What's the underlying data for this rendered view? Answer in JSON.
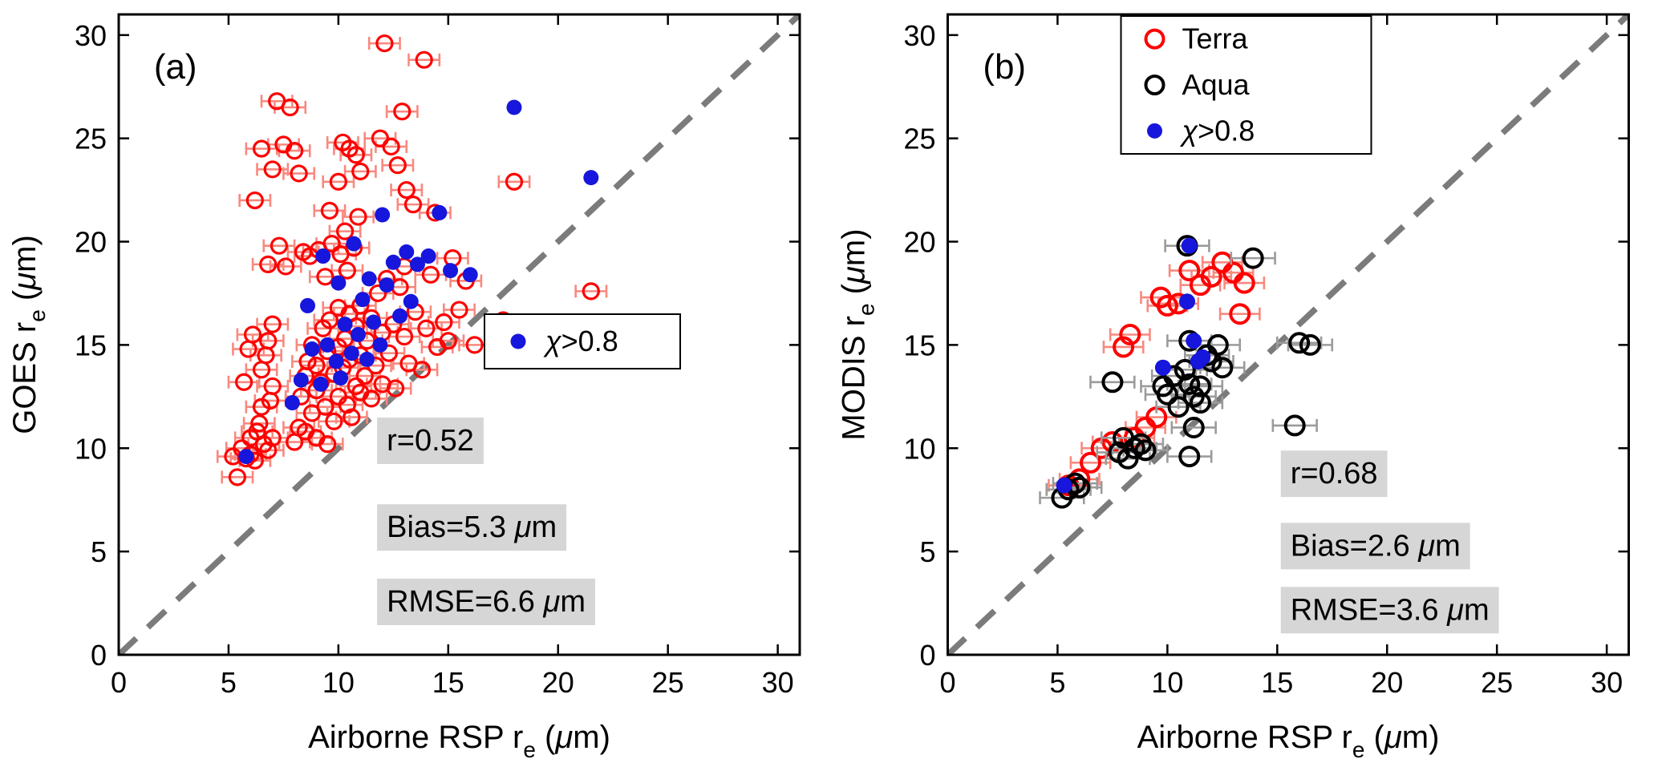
{
  "figure_title": "",
  "colors": {
    "red": "#ff0000",
    "red_err": "#f8897f",
    "blue": "#1616dc",
    "black": "#000000",
    "gray_err": "#9b9b9b",
    "identity_line": "#7b7b7b",
    "stats_bg": "#d6d6d6",
    "legend_bg": "#ffffff",
    "axis": "#000000"
  },
  "chart_data": [
    {
      "type": "scatter",
      "panel_label": "(a)",
      "xlabel": {
        "pre": "Airborne RSP r",
        "sub": "e",
        "post": " (μm)"
      },
      "ylabel": {
        "pre": "GOES r",
        "sub": "e",
        "post": " (μm)"
      },
      "xlim": [
        0,
        31
      ],
      "ylim": [
        0,
        31
      ],
      "xticks": [
        0,
        5,
        10,
        15,
        20,
        25,
        30
      ],
      "yticks": [
        0,
        5,
        10,
        15,
        20,
        25,
        30
      ],
      "identity_line": true,
      "stats": [
        "r=0.52",
        "Bias=5.3 μm",
        "RMSE=6.6 μm"
      ],
      "legend": [
        {
          "marker": "filled",
          "color": "blue",
          "label": "χ>0.8"
        }
      ],
      "series": [
        {
          "name": "goes-retrievals",
          "marker": "open",
          "color": "red",
          "err_color": "red_err",
          "xerr": 0.7,
          "points": [
            [
              5.2,
              9.6
            ],
            [
              5.4,
              8.6
            ],
            [
              5.6,
              10.0
            ],
            [
              5.7,
              13.2
            ],
            [
              5.8,
              9.5
            ],
            [
              5.9,
              14.8
            ],
            [
              6.0,
              9.7
            ],
            [
              6.0,
              10.5
            ],
            [
              6.1,
              15.5
            ],
            [
              6.2,
              9.4
            ],
            [
              6.2,
              22.0
            ],
            [
              6.3,
              10.8
            ],
            [
              6.4,
              11.2
            ],
            [
              6.5,
              12.0
            ],
            [
              6.5,
              13.8
            ],
            [
              6.5,
              24.5
            ],
            [
              6.6,
              10.2
            ],
            [
              6.7,
              14.5
            ],
            [
              6.8,
              9.9
            ],
            [
              6.8,
              15.2
            ],
            [
              6.8,
              18.9
            ],
            [
              6.9,
              12.3
            ],
            [
              7.0,
              10.5
            ],
            [
              7.0,
              13.0
            ],
            [
              7.0,
              16.0
            ],
            [
              7.0,
              23.5
            ],
            [
              7.2,
              26.8
            ],
            [
              7.3,
              19.8
            ],
            [
              7.5,
              24.7
            ],
            [
              7.6,
              18.8
            ],
            [
              7.8,
              26.5
            ],
            [
              8.0,
              10.3
            ],
            [
              8.0,
              24.4
            ],
            [
              8.2,
              11.0
            ],
            [
              8.2,
              23.3
            ],
            [
              8.3,
              12.5
            ],
            [
              8.4,
              19.5
            ],
            [
              8.5,
              10.8
            ],
            [
              8.5,
              13.5
            ],
            [
              8.6,
              14.2
            ],
            [
              8.7,
              19.3
            ],
            [
              8.8,
              11.7
            ],
            [
              8.8,
              15.0
            ],
            [
              9.0,
              10.5
            ],
            [
              9.0,
              12.8
            ],
            [
              9.0,
              14.0
            ],
            [
              9.1,
              19.6
            ],
            [
              9.2,
              13.2
            ],
            [
              9.3,
              15.8
            ],
            [
              9.4,
              12.0
            ],
            [
              9.4,
              18.3
            ],
            [
              9.5,
              10.2
            ],
            [
              9.5,
              14.7
            ],
            [
              9.6,
              16.2
            ],
            [
              9.6,
              21.5
            ],
            [
              9.7,
              19.9
            ],
            [
              9.8,
              11.3
            ],
            [
              9.8,
              13.6
            ],
            [
              10.0,
              12.5
            ],
            [
              10.0,
              14.9
            ],
            [
              10.0,
              16.8
            ],
            [
              10.0,
              22.9
            ],
            [
              10.1,
              19.4
            ],
            [
              10.2,
              13.9
            ],
            [
              10.2,
              24.8
            ],
            [
              10.3,
              15.3
            ],
            [
              10.3,
              20.5
            ],
            [
              10.4,
              12.1
            ],
            [
              10.4,
              18.6
            ],
            [
              10.5,
              14.3
            ],
            [
              10.5,
              16.5
            ],
            [
              10.5,
              24.5
            ],
            [
              10.6,
              11.5
            ],
            [
              10.7,
              19.7
            ],
            [
              10.8,
              13.0
            ],
            [
              10.8,
              15.9
            ],
            [
              10.8,
              24.2
            ],
            [
              10.9,
              21.2
            ],
            [
              11.0,
              12.7
            ],
            [
              11.0,
              14.5
            ],
            [
              11.0,
              16.9
            ],
            [
              11.0,
              23.4
            ],
            [
              11.2,
              13.5
            ],
            [
              11.3,
              15.2
            ],
            [
              11.5,
              12.4
            ],
            [
              11.5,
              16.3
            ],
            [
              11.7,
              14.0
            ],
            [
              11.8,
              17.5
            ],
            [
              11.9,
              25.0
            ],
            [
              12.0,
              13.1
            ],
            [
              12.0,
              15.6
            ],
            [
              12.1,
              29.6
            ],
            [
              12.2,
              18.2
            ],
            [
              12.3,
              14.6
            ],
            [
              12.4,
              24.6
            ],
            [
              12.5,
              16.0
            ],
            [
              12.6,
              12.9
            ],
            [
              12.7,
              23.7
            ],
            [
              12.8,
              17.8
            ],
            [
              12.9,
              26.3
            ],
            [
              13.0,
              15.4
            ],
            [
              13.0,
              18.8
            ],
            [
              13.1,
              22.5
            ],
            [
              13.2,
              14.1
            ],
            [
              13.4,
              21.8
            ],
            [
              13.5,
              16.6
            ],
            [
              13.8,
              13.8
            ],
            [
              13.9,
              28.8
            ],
            [
              14.0,
              15.8
            ],
            [
              14.2,
              18.4
            ],
            [
              14.4,
              21.4
            ],
            [
              14.5,
              14.9
            ],
            [
              14.8,
              16.1
            ],
            [
              15.0,
              15.2
            ],
            [
              15.2,
              19.2
            ],
            [
              15.5,
              16.7
            ],
            [
              15.8,
              18.1
            ],
            [
              16.2,
              15.0
            ],
            [
              17.5,
              16.2
            ],
            [
              18.0,
              22.9
            ],
            [
              21.5,
              17.6
            ]
          ]
        },
        {
          "name": "chi-gt-0.8",
          "marker": "filled",
          "color": "blue",
          "points": [
            [
              5.8,
              9.6
            ],
            [
              7.9,
              12.2
            ],
            [
              8.3,
              13.3
            ],
            [
              8.6,
              16.9
            ],
            [
              8.8,
              14.8
            ],
            [
              9.2,
              13.1
            ],
            [
              9.3,
              19.3
            ],
            [
              9.5,
              15.0
            ],
            [
              9.9,
              14.2
            ],
            [
              10.0,
              18.0
            ],
            [
              10.1,
              13.4
            ],
            [
              10.3,
              16.0
            ],
            [
              10.6,
              14.6
            ],
            [
              10.7,
              19.9
            ],
            [
              10.9,
              15.5
            ],
            [
              11.1,
              17.2
            ],
            [
              11.3,
              14.3
            ],
            [
              11.4,
              18.2
            ],
            [
              11.6,
              16.1
            ],
            [
              11.9,
              15.0
            ],
            [
              12.0,
              21.3
            ],
            [
              12.2,
              17.9
            ],
            [
              12.5,
              19.0
            ],
            [
              12.8,
              16.4
            ],
            [
              13.1,
              19.5
            ],
            [
              13.3,
              17.1
            ],
            [
              13.6,
              18.9
            ],
            [
              14.1,
              19.3
            ],
            [
              14.6,
              21.4
            ],
            [
              15.1,
              18.6
            ],
            [
              16.0,
              18.4
            ],
            [
              18.0,
              26.5
            ],
            [
              21.5,
              23.1
            ]
          ]
        }
      ]
    },
    {
      "type": "scatter",
      "panel_label": "(b)",
      "xlabel": {
        "pre": "Airborne RSP r",
        "sub": "e",
        "post": " (μm)"
      },
      "ylabel": {
        "pre": "MODIS r",
        "sub": "e",
        "post": " (μm)"
      },
      "xlim": [
        0,
        31
      ],
      "ylim": [
        0,
        31
      ],
      "xticks": [
        0,
        5,
        10,
        15,
        20,
        25,
        30
      ],
      "yticks": [
        0,
        5,
        10,
        15,
        20,
        25,
        30
      ],
      "identity_line": true,
      "stats": [
        "r=0.68",
        "Bias=2.6 μm",
        "RMSE=3.6 μm"
      ],
      "legend": [
        {
          "marker": "open",
          "color": "red",
          "label": "Terra"
        },
        {
          "marker": "open",
          "color": "black",
          "label": "Aqua"
        },
        {
          "marker": "filled",
          "color": "blue",
          "label": "χ>0.8"
        }
      ],
      "series": [
        {
          "name": "terra",
          "marker": "open",
          "color": "red",
          "err_color": "red_err",
          "xerr": 0.9,
          "points": [
            [
              5.5,
              8.2
            ],
            [
              6.0,
              8.5
            ],
            [
              6.5,
              9.3
            ],
            [
              7.0,
              10.0
            ],
            [
              7.5,
              10.3
            ],
            [
              8.0,
              14.9
            ],
            [
              8.3,
              15.5
            ],
            [
              8.5,
              10.5
            ],
            [
              9.0,
              11.0
            ],
            [
              9.5,
              11.5
            ],
            [
              9.7,
              17.3
            ],
            [
              10.0,
              16.9
            ],
            [
              10.5,
              17.0
            ],
            [
              11.0,
              18.6
            ],
            [
              11.5,
              17.9
            ],
            [
              12.0,
              18.3
            ],
            [
              12.5,
              19.0
            ],
            [
              13.0,
              18.5
            ],
            [
              13.3,
              16.5
            ],
            [
              13.5,
              18.0
            ]
          ]
        },
        {
          "name": "aqua",
          "marker": "open",
          "color": "black",
          "err_color": "gray_err",
          "xerr": 1.0,
          "points": [
            [
              5.2,
              7.6
            ],
            [
              5.5,
              8.0
            ],
            [
              5.8,
              8.3
            ],
            [
              6.0,
              8.1
            ],
            [
              7.5,
              13.2
            ],
            [
              7.8,
              9.8
            ],
            [
              8.0,
              10.5
            ],
            [
              8.2,
              9.5
            ],
            [
              8.5,
              10.0
            ],
            [
              8.8,
              10.2
            ],
            [
              9.0,
              9.9
            ],
            [
              9.8,
              13.0
            ],
            [
              10.0,
              12.6
            ],
            [
              10.3,
              13.5
            ],
            [
              10.5,
              12.0
            ],
            [
              10.8,
              13.8
            ],
            [
              10.9,
              19.8
            ],
            [
              11.0,
              9.6
            ],
            [
              11.0,
              13.1
            ],
            [
              11.0,
              15.2
            ],
            [
              11.2,
              11.0
            ],
            [
              11.2,
              12.5
            ],
            [
              11.5,
              12.2
            ],
            [
              11.5,
              13.0
            ],
            [
              11.8,
              14.5
            ],
            [
              12.0,
              14.2
            ],
            [
              12.3,
              15.0
            ],
            [
              12.5,
              13.9
            ],
            [
              13.9,
              19.2
            ],
            [
              15.8,
              11.1
            ],
            [
              16.0,
              15.1
            ],
            [
              16.5,
              15.0
            ]
          ]
        },
        {
          "name": "chi-gt-0.8",
          "marker": "filled",
          "color": "blue",
          "points": [
            [
              5.3,
              8.2
            ],
            [
              9.8,
              13.9
            ],
            [
              10.9,
              17.1
            ],
            [
              11.0,
              19.8
            ],
            [
              11.2,
              15.2
            ],
            [
              11.4,
              14.2
            ],
            [
              11.6,
              14.4
            ]
          ]
        }
      ]
    }
  ]
}
